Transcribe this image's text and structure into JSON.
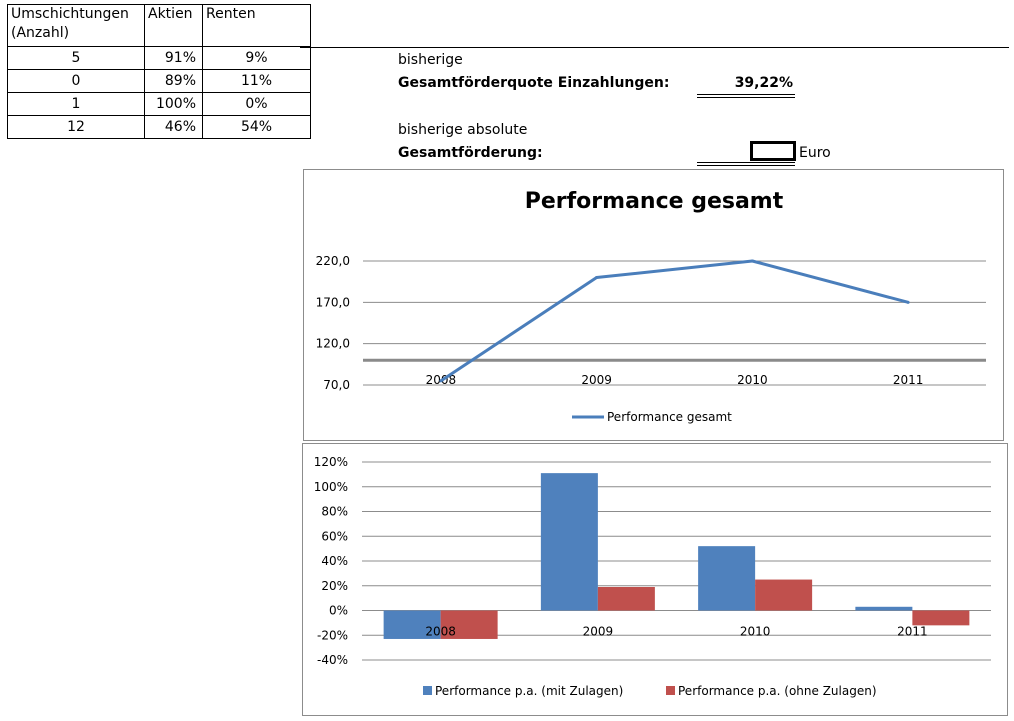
{
  "table": {
    "headers": [
      "Umschichtungen (Anzahl)",
      "Aktien",
      "Renten"
    ],
    "header_line1": "Umschichtungen",
    "header_line2": "(Anzahl)",
    "rows": [
      [
        "5",
        "91%",
        "9%"
      ],
      [
        "0",
        "89%",
        "11%"
      ],
      [
        "1",
        "100%",
        "0%"
      ],
      [
        "12",
        "46%",
        "54%"
      ]
    ]
  },
  "summary": {
    "quote_label1": "bisherige",
    "quote_label2": "Gesamtförderquote Einzahlungen:",
    "quote_value": "39,22%",
    "abs_label1": "bisherige absolute",
    "abs_label2": "Gesamtförderung:",
    "abs_unit": "Euro"
  },
  "chart_data": [
    {
      "type": "line",
      "title": "Performance gesamt",
      "categories": [
        "2008",
        "2009",
        "2010",
        "2011"
      ],
      "series": [
        {
          "name": "Performance gesamt",
          "values": [
            75,
            200,
            220,
            170
          ],
          "color": "#4a7ebb"
        }
      ],
      "ylim": [
        70,
        220
      ],
      "yticks": [
        "70,0",
        "120,0",
        "170,0",
        "220,0"
      ],
      "reference_line": 100,
      "xlabel": "",
      "ylabel": "",
      "legend": "bottom",
      "grid": true
    },
    {
      "type": "bar",
      "title": "",
      "categories": [
        "2008",
        "2009",
        "2010",
        "2011"
      ],
      "series": [
        {
          "name": "Performance  p.a. (mit Zulagen)",
          "values": [
            -23,
            111,
            52,
            3
          ],
          "color": "#4f81bd"
        },
        {
          "name": "Performance  p.a. (ohne Zulagen)",
          "values": [
            -23,
            19,
            25,
            -12
          ],
          "color": "#c0504d"
        }
      ],
      "ylim": [
        -40,
        120
      ],
      "yticks": [
        "-40%",
        "-20%",
        "0%",
        "20%",
        "40%",
        "60%",
        "80%",
        "100%",
        "120%"
      ],
      "xlabel": "",
      "ylabel": "",
      "legend": "bottom",
      "grid": true
    }
  ]
}
